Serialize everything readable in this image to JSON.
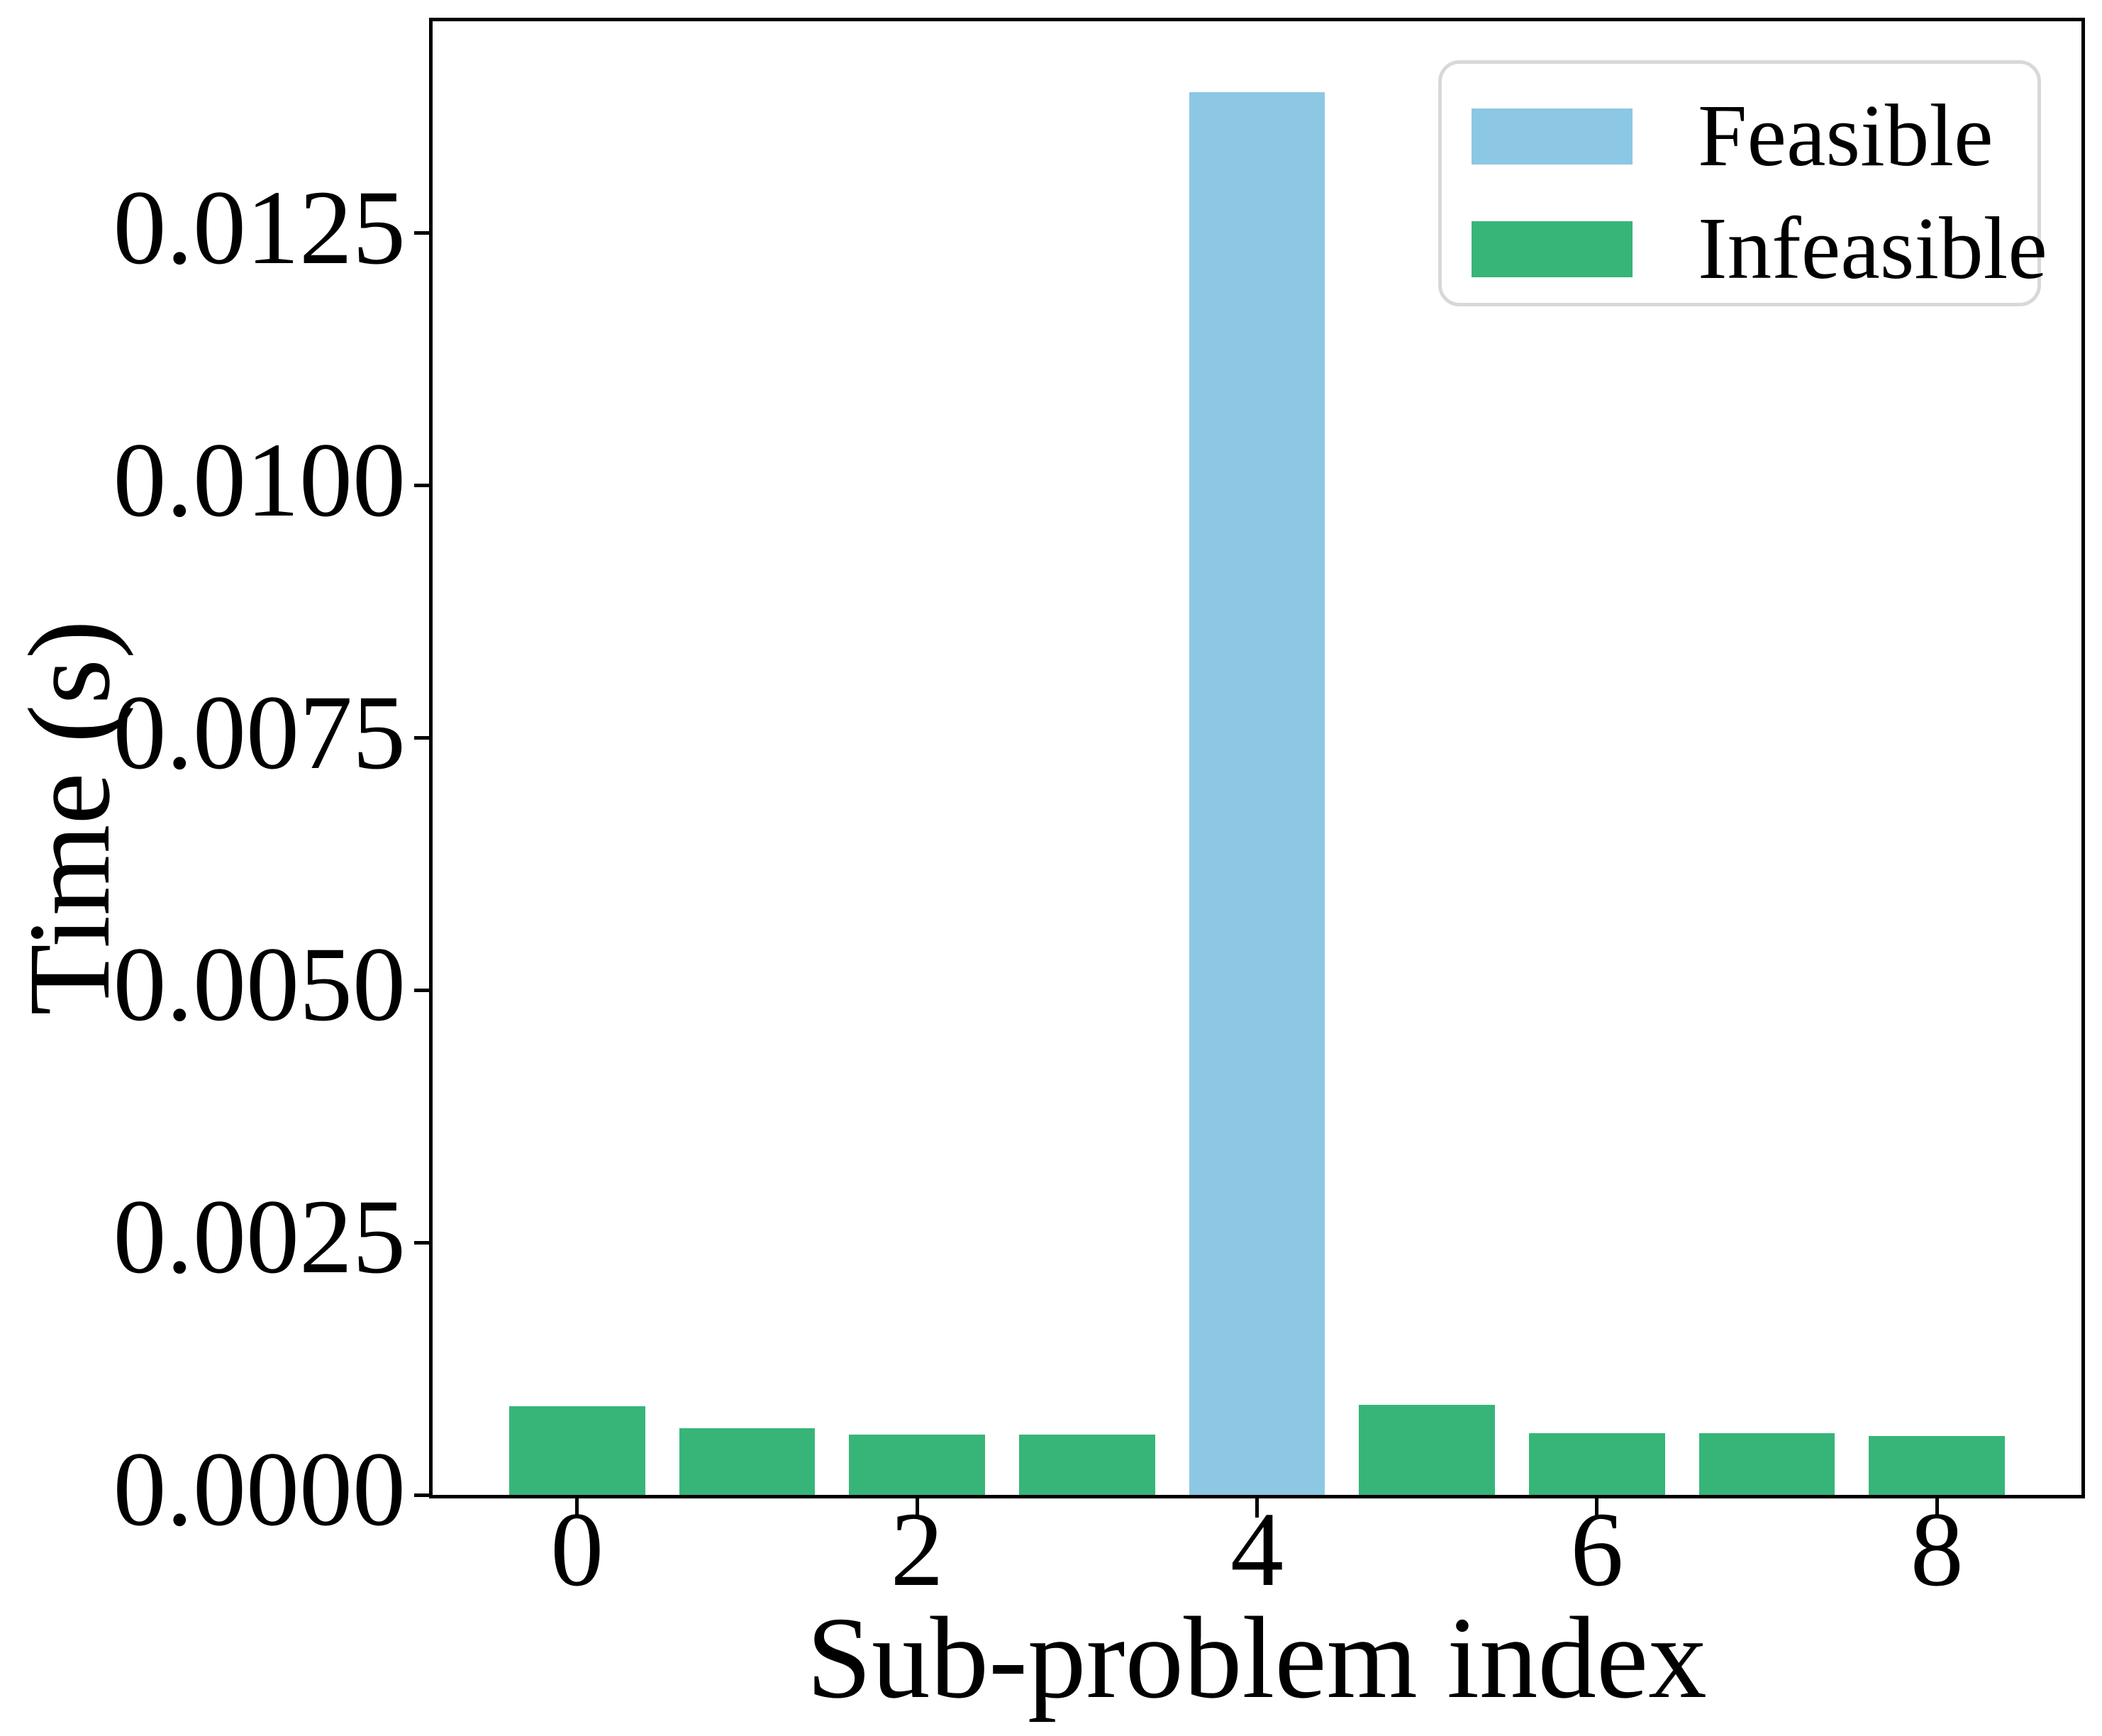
{
  "figure": {
    "xlabel": "Sub-problem index",
    "ylabel": "Time (s)"
  },
  "legend": {
    "entries": [
      {
        "label": "Feasible",
        "color": "#8CC7E4"
      },
      {
        "label": "Infeasible",
        "color": "#37B578"
      }
    ]
  },
  "chart_data": {
    "type": "bar",
    "title": "",
    "xlabel": "Sub-problem index",
    "ylabel": "Time (s)",
    "categories": [
      0,
      1,
      2,
      3,
      4,
      5,
      6,
      7,
      8
    ],
    "bars": [
      {
        "index": 0,
        "value": 0.00088,
        "status": "Infeasible"
      },
      {
        "index": 1,
        "value": 0.00066,
        "status": "Infeasible"
      },
      {
        "index": 2,
        "value": 0.0006,
        "status": "Infeasible"
      },
      {
        "index": 3,
        "value": 0.0006,
        "status": "Infeasible"
      },
      {
        "index": 4,
        "value": 0.0139,
        "status": "Feasible"
      },
      {
        "index": 5,
        "value": 0.00089,
        "status": "Infeasible"
      },
      {
        "index": 6,
        "value": 0.00061,
        "status": "Infeasible"
      },
      {
        "index": 7,
        "value": 0.00061,
        "status": "Infeasible"
      },
      {
        "index": 8,
        "value": 0.00058,
        "status": "Infeasible"
      }
    ],
    "series": [
      {
        "name": "Feasible",
        "color": "#8CC7E4",
        "values": [
          null,
          null,
          null,
          null,
          0.0139,
          null,
          null,
          null,
          null
        ]
      },
      {
        "name": "Infeasible",
        "color": "#37B578",
        "values": [
          0.00088,
          0.00066,
          0.0006,
          0.0006,
          null,
          0.00089,
          0.00061,
          0.00061,
          0.00058
        ]
      }
    ],
    "colors": {
      "Feasible": "#8CC7E4",
      "Infeasible": "#37B578"
    },
    "bar_width": 0.8,
    "x_tick_labels": [
      "0",
      "2",
      "4",
      "6",
      "8"
    ],
    "x_tick_values": [
      0,
      2,
      4,
      6,
      8
    ],
    "y_tick_labels": [
      "0.0000",
      "0.0025",
      "0.0050",
      "0.0075",
      "0.0100",
      "0.0125"
    ],
    "y_tick_values": [
      0,
      0.0025,
      0.005,
      0.0075,
      0.01,
      0.0125
    ],
    "xlim": [
      -0.85,
      8.85
    ],
    "ylim": [
      0,
      0.0146
    ],
    "grid": false,
    "legend_position": "upper right"
  }
}
